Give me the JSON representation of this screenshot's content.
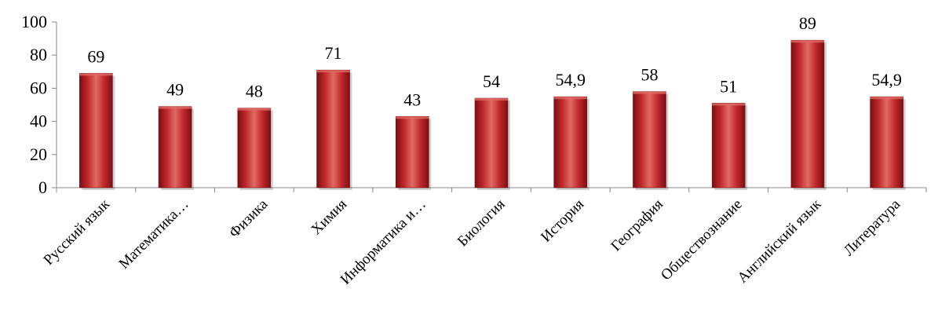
{
  "chart_data": {
    "type": "bar",
    "categories": [
      "Русский язык",
      "Математика…",
      "Физика",
      "Химия",
      "Информатика и…",
      "Биология",
      "История",
      "География",
      "Обществознание",
      "Английский язык",
      "Литература"
    ],
    "values": [
      69,
      49,
      48,
      71,
      43,
      54,
      54.9,
      58,
      51,
      89,
      54.9
    ],
    "data_labels": [
      "69",
      "49",
      "48",
      "71",
      "43",
      "54",
      "54,9",
      "58",
      "51",
      "89",
      "54,9"
    ],
    "yticks": [
      "0",
      "20",
      "40",
      "60",
      "80",
      "100"
    ],
    "ylim": [
      0,
      100
    ],
    "title": "",
    "xlabel": "",
    "ylabel": "",
    "grid": false,
    "legend": "none",
    "bar_color": "#c0282b",
    "bar_color_light": "#e06a64",
    "bar_color_dark": "#7a0f12",
    "axis_color": "#888888"
  }
}
